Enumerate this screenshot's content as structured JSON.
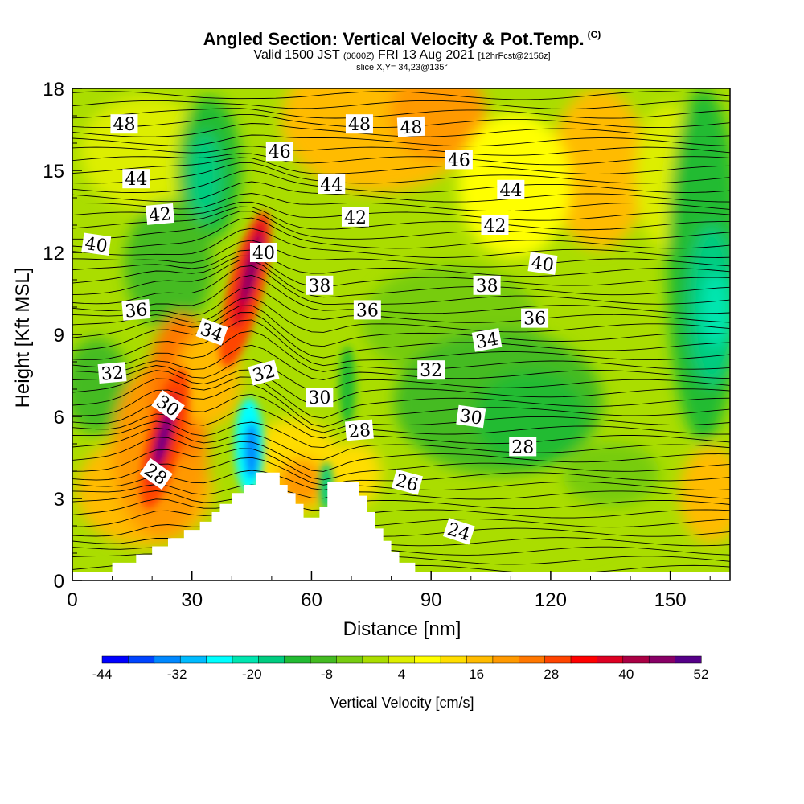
{
  "header": {
    "title": "Angled Section: Vertical Velocity & Pot.Temp.",
    "title_mark": "(C)",
    "subtitle_a": "Valid 1500 JST",
    "subtitle_b": "(0600Z)",
    "subtitle_c": "FRI 13 Aug 2021",
    "subtitle_d": "[12hrFcst@2156z]",
    "slice": "slice X,Y= 34,23@135°"
  },
  "chart_data": {
    "type": "heatmap",
    "xlabel": "Distance [nm]",
    "ylabel": "Height [Kft MSL]",
    "xlim": [
      0,
      165
    ],
    "ylim": [
      0,
      18
    ],
    "xticks": [
      "0",
      "30",
      "60",
      "90",
      "120",
      "150"
    ],
    "yticks": [
      "0",
      "3",
      "6",
      "9",
      "12",
      "15",
      "18"
    ],
    "xtick_values": [
      0,
      30,
      60,
      90,
      120,
      150
    ],
    "ytick_values": [
      0,
      3,
      6,
      9,
      12,
      15,
      18
    ],
    "colorbar": {
      "label": "Vertical Velocity [cm/s]",
      "tick_labels": [
        "-44",
        "-32",
        "-20",
        "-8",
        "4",
        "16",
        "28",
        "40",
        "52"
      ],
      "colors": [
        "#0000ff",
        "#0044ff",
        "#0088ff",
        "#00bbff",
        "#00ffff",
        "#00e6b0",
        "#00cc80",
        "#22bb33",
        "#44bb22",
        "#77cc11",
        "#aadd00",
        "#ddee00",
        "#ffff00",
        "#ffdd00",
        "#ffbb00",
        "#ff9900",
        "#ff7700",
        "#ff4400",
        "#ff0000",
        "#dd0022",
        "#aa0044",
        "#880066",
        "#550088"
      ]
    },
    "terrain_profile": [
      [
        0,
        0.3
      ],
      [
        10,
        0.3
      ],
      [
        10,
        0.65
      ],
      [
        16,
        0.65
      ],
      [
        16,
        0.95
      ],
      [
        20,
        0.95
      ],
      [
        20,
        1.25
      ],
      [
        24,
        1.25
      ],
      [
        24,
        1.55
      ],
      [
        28,
        1.55
      ],
      [
        28,
        1.85
      ],
      [
        32,
        1.85
      ],
      [
        32,
        2.15
      ],
      [
        35,
        2.15
      ],
      [
        35,
        2.5
      ],
      [
        37,
        2.5
      ],
      [
        37,
        2.8
      ],
      [
        40,
        2.8
      ],
      [
        40,
        3.2
      ],
      [
        43,
        3.2
      ],
      [
        43,
        3.5
      ],
      [
        46,
        3.5
      ],
      [
        46,
        3.95
      ],
      [
        52,
        3.95
      ],
      [
        52,
        3.5
      ],
      [
        54,
        3.5
      ],
      [
        54,
        3.2
      ],
      [
        56,
        3.2
      ],
      [
        56,
        2.8
      ],
      [
        58,
        2.8
      ],
      [
        58,
        2.3
      ],
      [
        62,
        2.3
      ],
      [
        62,
        2.7
      ],
      [
        64,
        2.7
      ],
      [
        64,
        3.6
      ],
      [
        72,
        3.6
      ],
      [
        72,
        3.1
      ],
      [
        74,
        3.1
      ],
      [
        74,
        2.5
      ],
      [
        76,
        2.5
      ],
      [
        76,
        1.9
      ],
      [
        78,
        1.9
      ],
      [
        78,
        1.45
      ],
      [
        80,
        1.45
      ],
      [
        80,
        1.05
      ],
      [
        82,
        1.05
      ],
      [
        82,
        0.65
      ],
      [
        86,
        0.65
      ],
      [
        86,
        0.3
      ],
      [
        165,
        0.3
      ]
    ],
    "contour_labels": [
      {
        "text": "48",
        "x": 13,
        "y": 16.7,
        "angle": 0
      },
      {
        "text": "48",
        "x": 72,
        "y": 16.7,
        "angle": 0
      },
      {
        "text": "48",
        "x": 85,
        "y": 16.6,
        "angle": -3
      },
      {
        "text": "46",
        "x": 52,
        "y": 15.7,
        "angle": 0
      },
      {
        "text": "46",
        "x": 97,
        "y": 15.4,
        "angle": 0
      },
      {
        "text": "44",
        "x": 16,
        "y": 14.7,
        "angle": 0
      },
      {
        "text": "44",
        "x": 65,
        "y": 14.5,
        "angle": 0
      },
      {
        "text": "44",
        "x": 110,
        "y": 14.3,
        "angle": 0
      },
      {
        "text": "42",
        "x": 22,
        "y": 13.4,
        "angle": -5
      },
      {
        "text": "42",
        "x": 71,
        "y": 13.3,
        "angle": 0
      },
      {
        "text": "42",
        "x": 106,
        "y": 13.0,
        "angle": 0
      },
      {
        "text": "40",
        "x": 6,
        "y": 12.3,
        "angle": 8
      },
      {
        "text": "40",
        "x": 48,
        "y": 12.0,
        "angle": 0
      },
      {
        "text": "40",
        "x": 118,
        "y": 11.6,
        "angle": 8
      },
      {
        "text": "38",
        "x": 62,
        "y": 10.8,
        "angle": 0
      },
      {
        "text": "38",
        "x": 104,
        "y": 10.8,
        "angle": 0
      },
      {
        "text": "36",
        "x": 16,
        "y": 9.9,
        "angle": -5
      },
      {
        "text": "36",
        "x": 74,
        "y": 9.9,
        "angle": 0
      },
      {
        "text": "36",
        "x": 116,
        "y": 9.6,
        "angle": 0
      },
      {
        "text": "34",
        "x": 35,
        "y": 9.1,
        "angle": 20
      },
      {
        "text": "34",
        "x": 104,
        "y": 8.8,
        "angle": -10
      },
      {
        "text": "32",
        "x": 10,
        "y": 7.6,
        "angle": -5
      },
      {
        "text": "32",
        "x": 48,
        "y": 7.6,
        "angle": -15
      },
      {
        "text": "32",
        "x": 90,
        "y": 7.7,
        "angle": 0
      },
      {
        "text": "30",
        "x": 24,
        "y": 6.4,
        "angle": 35
      },
      {
        "text": "30",
        "x": 62,
        "y": 6.7,
        "angle": 0
      },
      {
        "text": "30",
        "x": 100,
        "y": 6.0,
        "angle": 8
      },
      {
        "text": "28",
        "x": 21,
        "y": 3.9,
        "angle": 35
      },
      {
        "text": "28",
        "x": 72,
        "y": 5.5,
        "angle": -5
      },
      {
        "text": "28",
        "x": 113,
        "y": 4.9,
        "angle": 0
      },
      {
        "text": "26",
        "x": 84,
        "y": 3.6,
        "angle": 15
      },
      {
        "text": "24",
        "x": 97,
        "y": 1.8,
        "angle": 18
      }
    ]
  }
}
